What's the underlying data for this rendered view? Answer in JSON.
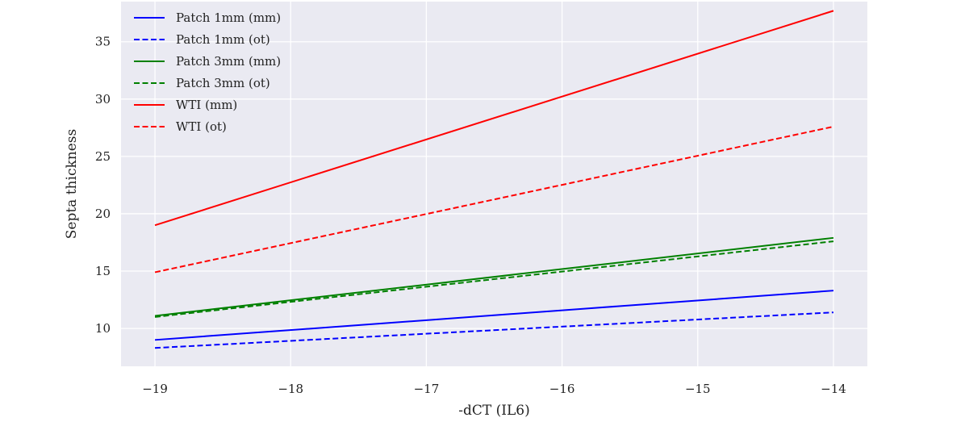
{
  "chart_data": {
    "type": "line",
    "title": "",
    "xlabel": "-dCT (IL6)",
    "ylabel": "Septa thickness",
    "xlim": [
      -19.25,
      -13.75
    ],
    "ylim": [
      6.7,
      38.5
    ],
    "xticks": [
      -19,
      -18,
      -17,
      -16,
      -15,
      -14
    ],
    "yticks": [
      10,
      15,
      20,
      25,
      30,
      35
    ],
    "xtick_labels": [
      "−19",
      "−18",
      "−17",
      "−16",
      "−15",
      "−14"
    ],
    "ytick_labels": [
      "10",
      "15",
      "20",
      "25",
      "30",
      "35"
    ],
    "grid": true,
    "legend_position": "top-left",
    "background_color": "#EAEAF2",
    "series": [
      {
        "name": "Patch 1mm (mm)",
        "color": "#0000FF",
        "style": "solid",
        "x": [
          -19,
          -14
        ],
        "y": [
          9.0,
          13.3
        ]
      },
      {
        "name": "Patch 1mm (ot)",
        "color": "#0000FF",
        "style": "dashed",
        "x": [
          -19,
          -14
        ],
        "y": [
          8.3,
          11.4
        ]
      },
      {
        "name": "Patch 3mm (mm)",
        "color": "#008000",
        "style": "solid",
        "x": [
          -19,
          -14
        ],
        "y": [
          11.1,
          17.9
        ]
      },
      {
        "name": "Patch 3mm (ot)",
        "color": "#008000",
        "style": "dashed",
        "x": [
          -19,
          -14
        ],
        "y": [
          11.0,
          17.6
        ]
      },
      {
        "name": "WTI (mm)",
        "color": "#FF0000",
        "style": "solid",
        "x": [
          -19,
          -14
        ],
        "y": [
          19.0,
          37.7
        ]
      },
      {
        "name": "WTI (ot)",
        "color": "#FF0000",
        "style": "dashed",
        "x": [
          -19,
          -14
        ],
        "y": [
          14.9,
          27.6
        ]
      }
    ]
  }
}
